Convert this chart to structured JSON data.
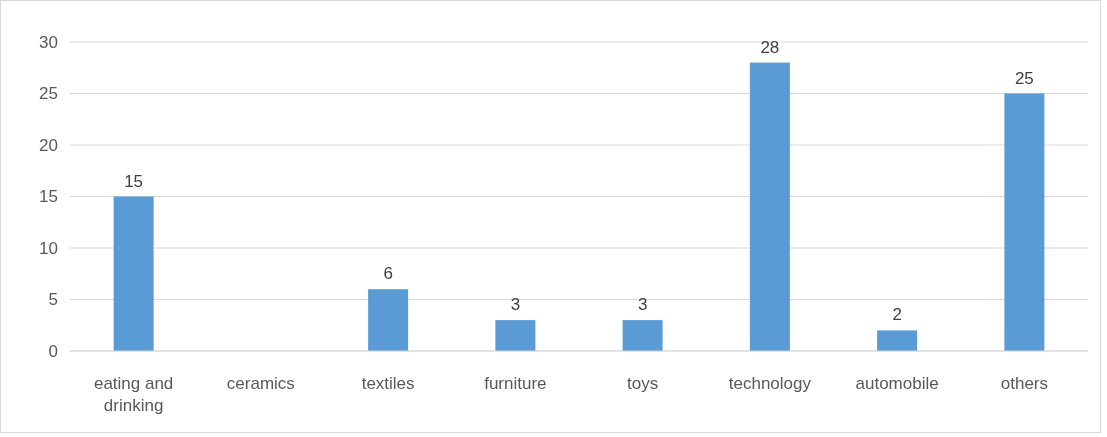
{
  "chart_data": {
    "type": "bar",
    "categories": [
      "eating and drinking",
      "ceramics",
      "textiles",
      "furniture",
      "toys",
      "technology",
      "automobile",
      "others"
    ],
    "values": [
      15,
      0,
      6,
      3,
      3,
      28,
      2,
      25
    ],
    "value_labels": [
      "15",
      null,
      "6",
      "3",
      "3",
      "28",
      "2",
      "25"
    ],
    "color": "#5b9bd5",
    "ylim": [
      0,
      30
    ],
    "yticks": [
      0,
      5,
      10,
      15,
      20,
      25,
      30
    ],
    "grid": "y"
  }
}
